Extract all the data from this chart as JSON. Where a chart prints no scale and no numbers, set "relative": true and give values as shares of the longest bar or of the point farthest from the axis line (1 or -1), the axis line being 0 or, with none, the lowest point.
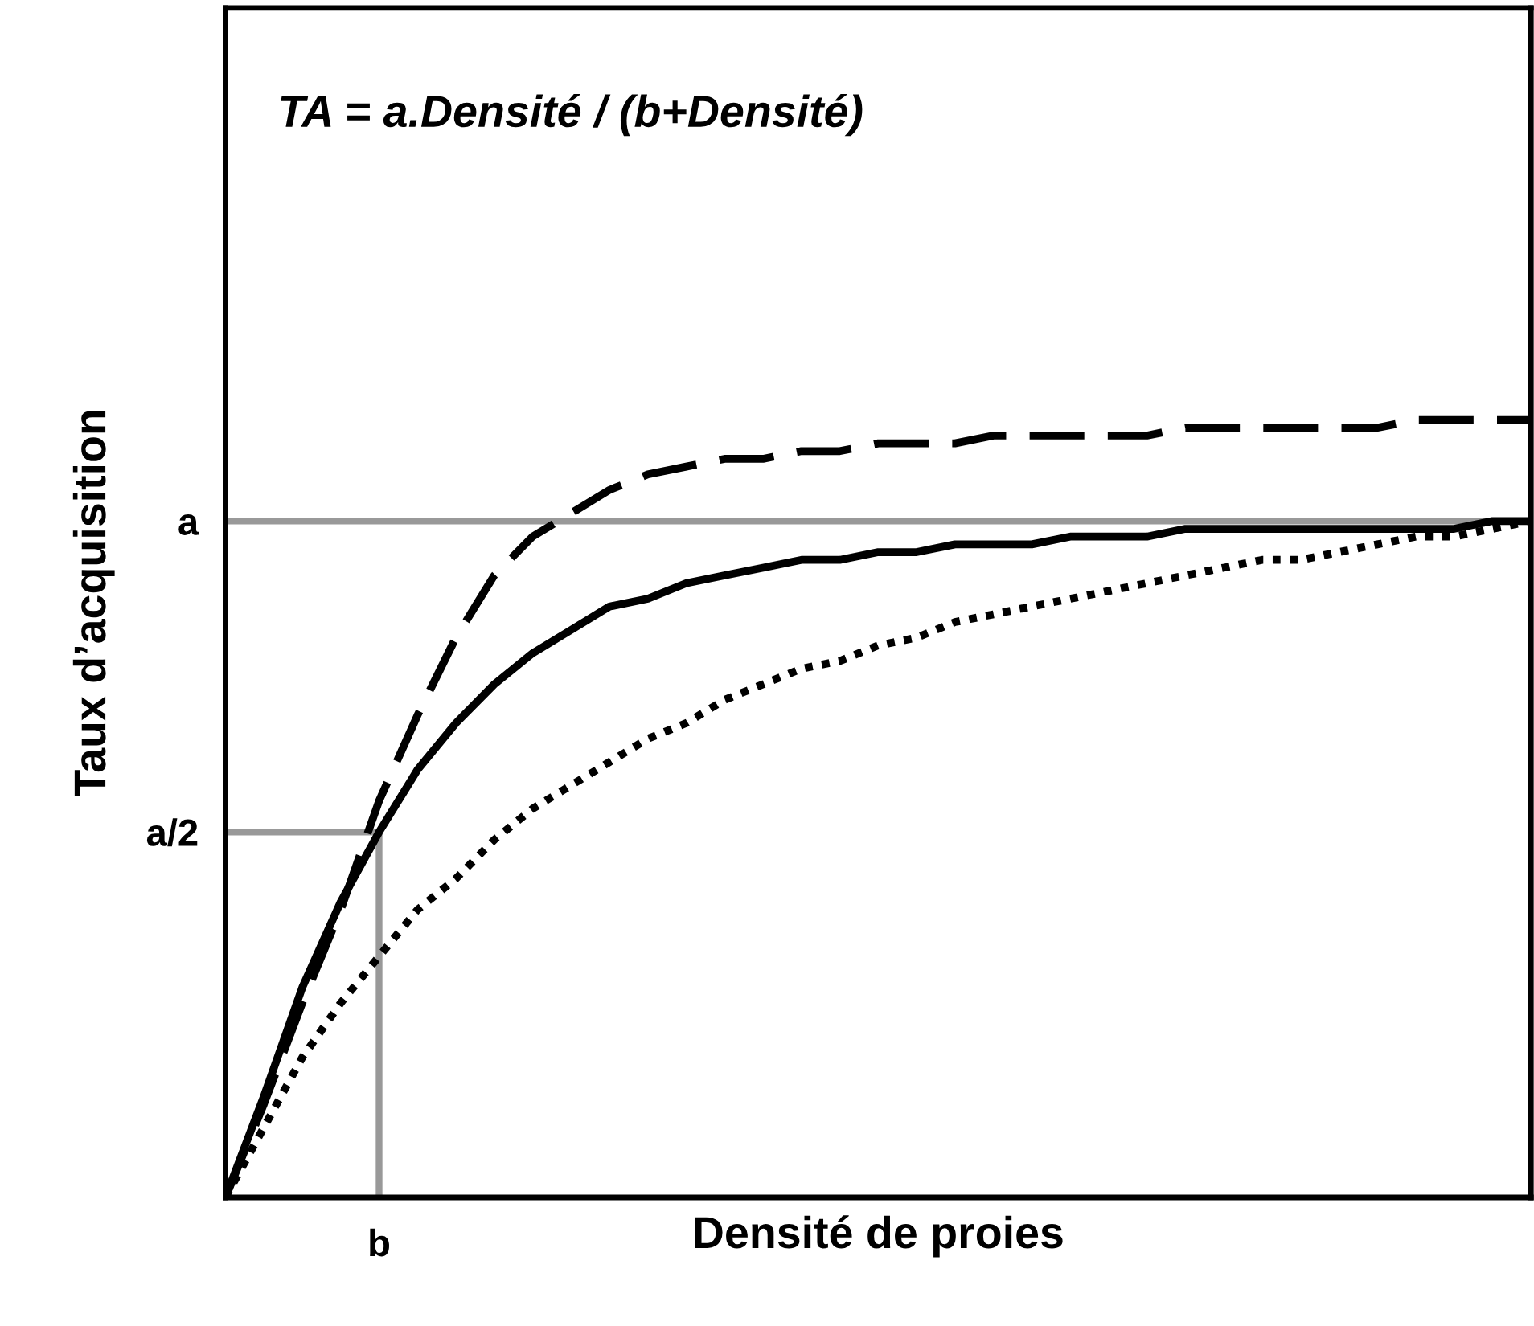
{
  "chart_data": {
    "type": "line",
    "relative": true,
    "xlabel": "Densité de proies",
    "ylabel": "Taux d’acquisition",
    "categories": [
      null,
      null,
      null,
      null,
      null,
      null,
      null,
      null,
      null,
      null,
      null,
      null,
      null,
      null,
      null,
      null,
      null,
      null,
      null,
      null,
      null,
      null,
      null,
      null,
      null,
      null,
      null,
      null,
      null,
      null,
      null,
      null,
      null,
      null,
      null
    ],
    "annotations": [
      "TA = a.Densité / (b+Densité)",
      "b"
    ],
    "ref_lines": [
      {
        "axis": "y",
        "value": 0.87,
        "label": "a",
        "color": "#999999",
        "line_style": "solid"
      },
      {
        "axis": "y",
        "value": 0.47,
        "label": "a/2",
        "color": "#999999",
        "line_style": "solid"
      }
    ],
    "series": [
      {
        "color": "#000000",
        "line_style": "dashed",
        "values": [
          0,
          0.12,
          0.25,
          0.37,
          0.51,
          0.62,
          0.72,
          0.8,
          0.85,
          0.88,
          0.91,
          0.93,
          0.94,
          0.95,
          0.95,
          0.96,
          0.96,
          0.97,
          0.97,
          0.97,
          0.98,
          0.98,
          0.98,
          0.98,
          0.98,
          0.99,
          0.99,
          0.99,
          0.99,
          0.99,
          0.99,
          1.0,
          1.0,
          1.0,
          1.0
        ]
      },
      {
        "color": "#000000",
        "line_style": "solid",
        "values": [
          0,
          0.13,
          0.27,
          0.38,
          0.47,
          0.55,
          0.61,
          0.66,
          0.7,
          0.73,
          0.76,
          0.77,
          0.79,
          0.8,
          0.81,
          0.82,
          0.82,
          0.83,
          0.83,
          0.84,
          0.84,
          0.84,
          0.85,
          0.85,
          0.85,
          0.86,
          0.86,
          0.86,
          0.86,
          0.86,
          0.86,
          0.86,
          0.86,
          0.87,
          0.87
        ]
      },
      {
        "color": "#000000",
        "line_style": "dotted",
        "values": [
          0,
          0.09,
          0.18,
          0.25,
          0.31,
          0.37,
          0.41,
          0.46,
          0.5,
          0.53,
          0.56,
          0.59,
          0.61,
          0.64,
          0.66,
          0.68,
          0.69,
          0.71,
          0.72,
          0.74,
          0.75,
          0.76,
          0.77,
          0.78,
          0.79,
          0.8,
          0.81,
          0.82,
          0.82,
          0.83,
          0.84,
          0.85,
          0.85,
          0.86,
          0.87
        ]
      }
    ]
  }
}
